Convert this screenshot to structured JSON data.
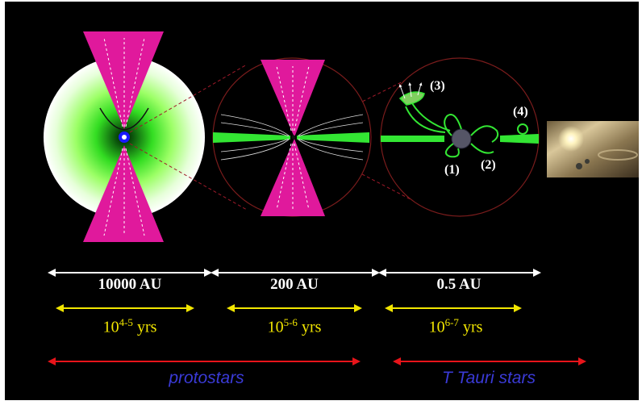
{
  "colors": {
    "background": "#000000",
    "outflow": "#e0199c",
    "disk": "#33e633",
    "envelope": "#7fff3f",
    "circle": "#7a1c1c",
    "scale_arrow": "#ffffff",
    "time_arrow": "#f2e600",
    "time_text": "#f2e600",
    "phase_arrow": "#e8141a",
    "phase_text": "#3a3ad6"
  },
  "stages": [
    {
      "scale": "10000 AU",
      "time_base": "10",
      "time_exp": "4-5",
      "time_unit": " yrs"
    },
    {
      "scale": "200 AU",
      "time_base": "10",
      "time_exp": "5-6",
      "time_unit": " yrs"
    },
    {
      "scale": "0.5 AU",
      "time_base": "10",
      "time_exp": "6-7",
      "time_unit": " yrs"
    }
  ],
  "phases": [
    {
      "label": "protostars"
    },
    {
      "label": "T Tauri stars"
    }
  ],
  "process_labels": [
    "(1)",
    "(2)",
    "(3)",
    "(4)"
  ]
}
